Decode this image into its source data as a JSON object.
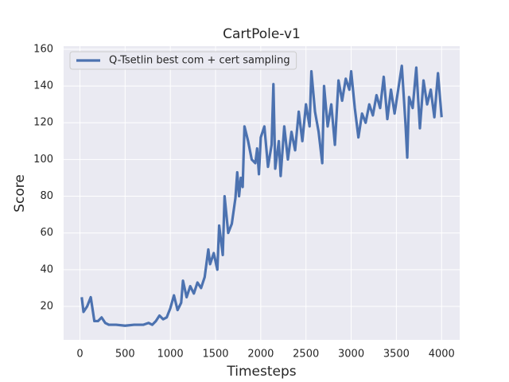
{
  "chart_data": {
    "type": "line",
    "title": "CartPole-v1",
    "x_label": "Timesteps",
    "y_label": "Score",
    "x": [
      20,
      40,
      80,
      120,
      160,
      200,
      240,
      280,
      320,
      400,
      500,
      600,
      700,
      760,
      800,
      840,
      880,
      920,
      960,
      1000,
      1040,
      1080,
      1120,
      1140,
      1180,
      1220,
      1260,
      1300,
      1340,
      1380,
      1420,
      1440,
      1480,
      1520,
      1540,
      1580,
      1600,
      1640,
      1680,
      1720,
      1740,
      1760,
      1780,
      1800,
      1820,
      1860,
      1900,
      1940,
      1960,
      1980,
      2000,
      2040,
      2080,
      2120,
      2140,
      2160,
      2200,
      2220,
      2260,
      2300,
      2340,
      2380,
      2420,
      2460,
      2500,
      2540,
      2560,
      2600,
      2640,
      2680,
      2700,
      2740,
      2780,
      2820,
      2860,
      2900,
      2940,
      2980,
      3000,
      3040,
      3080,
      3120,
      3160,
      3200,
      3240,
      3280,
      3320,
      3360,
      3400,
      3440,
      3480,
      3520,
      3560,
      3600,
      3620,
      3640,
      3680,
      3720,
      3760,
      3800,
      3840,
      3880,
      3920,
      3960,
      4000
    ],
    "series": [
      {
        "name": "Q-Tsetlin best com + cert sampling",
        "color": "#4c72b0",
        "values": [
          25,
          17,
          20,
          25,
          12,
          12,
          14,
          11,
          10,
          10,
          9.5,
          10,
          10,
          11,
          10,
          12,
          15,
          13,
          14,
          19,
          26,
          18,
          22,
          34,
          25,
          31,
          27,
          33,
          30,
          36,
          51,
          43,
          49,
          40,
          64,
          48,
          80,
          60,
          65,
          79,
          93,
          80,
          90,
          85,
          118,
          110,
          100,
          98,
          106,
          92,
          112,
          118,
          96,
          108,
          141,
          95,
          110,
          91,
          118,
          100,
          115,
          105,
          126,
          110,
          130,
          118,
          148,
          126,
          115,
          98,
          140,
          118,
          130,
          108,
          143,
          132,
          144,
          138,
          148,
          128,
          112,
          125,
          120,
          130,
          124,
          135,
          128,
          145,
          122,
          138,
          125,
          138,
          151,
          120,
          101,
          134,
          128,
          150,
          117,
          143,
          130,
          138,
          123,
          147,
          123
        ]
      }
    ],
    "xlim": [
      -180,
      4200
    ],
    "ylim": [
      1.8,
      161.7
    ],
    "xticks": [
      0,
      500,
      1000,
      1500,
      2000,
      2500,
      3000,
      3500,
      4000
    ],
    "yticks": [
      20,
      40,
      60,
      80,
      100,
      120,
      140,
      160
    ],
    "grid": true,
    "legend": "upper left"
  }
}
